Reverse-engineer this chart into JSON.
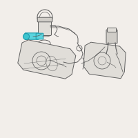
{
  "bg_color": "#f2eeea",
  "line_color": "#606060",
  "line_color2": "#888888",
  "highlight_teal": "#3ec4ce",
  "highlight_teal2": "#5ad4de",
  "highlight_teal_dark": "#1a9aaa",
  "fill_light": "#e0ddd8",
  "fill_mid": "#d0cdc8",
  "line_width": 0.7
}
